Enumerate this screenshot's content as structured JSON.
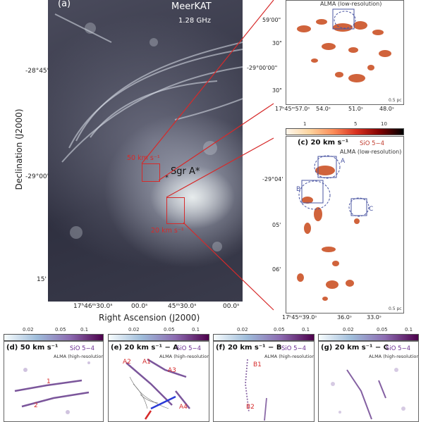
{
  "panel_a": {
    "label": "(a)",
    "telescope": "MeerKAT",
    "frequency": "1.28 GHz",
    "sgr_a": "Sgr A*",
    "cloud_50": "50 km s⁻¹",
    "cloud_20": "20 km s⁻¹",
    "y_ticks": [
      "-28°45'",
      "-29°00'",
      "15'"
    ],
    "x_ticks": [
      "17ʰ46ᵐ30.0ˢ",
      "00.0ˢ",
      "45ᵐ30.0ˢ",
      "00.0ˢ"
    ],
    "ylabel": "Declination (J2000)",
    "xlabel": "Right Ascension (J2000)"
  },
  "panel_b": {
    "ylabel_text": "ALMA (low-resolution)",
    "y_ticks": [
      "59'00\"",
      "30\"",
      "-29°00'00\"",
      "30\""
    ],
    "x_ticks": [
      "17ʰ45ᵐ57.0ˢ",
      "54.0ˢ",
      "51.0ˢ",
      "48.0ˢ"
    ],
    "scale": "0.5 pc"
  },
  "colorbar_top": {
    "ticks": [
      "1",
      "5",
      "10"
    ]
  },
  "panel_c": {
    "title": "(c) 20 km s⁻¹",
    "molecule": "SiO 5−4",
    "resolution": "ALMA (low-resolution)",
    "boxes": [
      "A",
      "B",
      "C"
    ],
    "y_ticks": [
      "-29°04'",
      "05'",
      "06'"
    ],
    "x_ticks": [
      "17ʰ45ᵐ39.0ˢ",
      "36.0ˢ",
      "33.0ˢ"
    ],
    "scale": "0.5 pc"
  },
  "bottom_panels": [
    {
      "title": "(d) 50 km s⁻¹",
      "molecule": "SiO 5−4",
      "resolution": "ALMA (high-resolution)",
      "cbar_ticks": [
        "0.02",
        "0.05",
        "0.1"
      ],
      "labels": [
        "1",
        "2"
      ]
    },
    {
      "title": "(e) 20 km s⁻¹ − A",
      "molecule": "SiO 5−4",
      "resolution": "ALMA (high-resolution)",
      "cbar_ticks": [
        "0.02",
        "0.05",
        "0.1"
      ],
      "labels": [
        "A2",
        "A1",
        "A3",
        "A4"
      ]
    },
    {
      "title": "(f) 20 km s⁻¹ − B",
      "molecule": "SiO 5−4",
      "resolution": "ALMA (high-resolution)",
      "cbar_ticks": [
        "0.02",
        "0.05",
        "0.1"
      ],
      "labels": [
        "B1",
        "B2"
      ]
    },
    {
      "title": "(g) 20 km s⁻¹ − C",
      "molecule": "SiO 5−4",
      "resolution": "ALMA (high-resolution)",
      "cbar_ticks": [
        "0.02",
        "0.05",
        "0.1"
      ],
      "labels": []
    }
  ],
  "colors": {
    "red_box": "#d62a2a",
    "blue_box": "#4a55a2",
    "emission": "#c8481a"
  }
}
